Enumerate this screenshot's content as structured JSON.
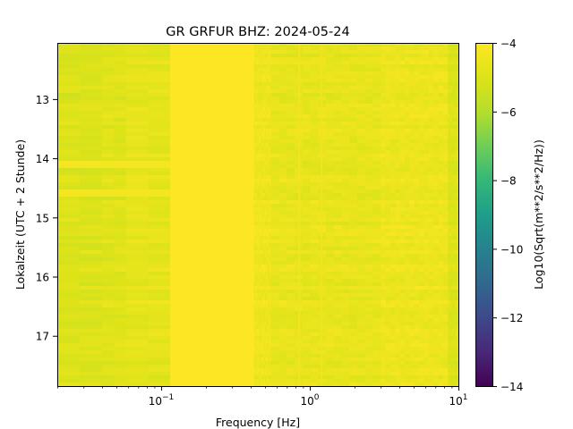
{
  "chart_data": {
    "type": "heatmap",
    "title": "GR GRFUR  BHZ: 2024-05-24",
    "xlabel": "Frequency [Hz]",
    "ylabel": "Lokalzeit (UTC + 2 Stunde)",
    "x_scale": "log",
    "xlim": [
      0.02,
      10
    ],
    "ylim": [
      17.85,
      12.05
    ],
    "x_ticks": [
      {
        "value": 0.1,
        "base": "10",
        "exp": "−1"
      },
      {
        "value": 1,
        "base": "10",
        "exp": "0"
      },
      {
        "value": 10,
        "base": "10",
        "exp": "1"
      }
    ],
    "y_ticks": [
      {
        "value": 13,
        "label": "13"
      },
      {
        "value": 14,
        "label": "14"
      },
      {
        "value": 15,
        "label": "15"
      },
      {
        "value": 16,
        "label": "16"
      },
      {
        "value": 17,
        "label": "17"
      }
    ],
    "colorbar": {
      "label": "Log10(Sqrt(m**2/s**2/Hz))",
      "colormap": "viridis",
      "range": [
        -14,
        -4
      ],
      "ticks": [
        {
          "value": -4,
          "label": "−4"
        },
        {
          "value": -6,
          "label": "−6"
        },
        {
          "value": -8,
          "label": "−8"
        },
        {
          "value": -10,
          "label": "−10"
        },
        {
          "value": -12,
          "label": "−12"
        },
        {
          "value": -14,
          "label": "−14"
        }
      ]
    },
    "frequency_bands": [
      {
        "f_min": 0.02,
        "f_max": 0.04,
        "level": -5.0
      },
      {
        "f_min": 0.04,
        "f_max": 0.058,
        "level": -4.9
      },
      {
        "f_min": 0.058,
        "f_max": 0.115,
        "level": -4.75
      },
      {
        "f_min": 0.115,
        "f_max": 0.42,
        "level": -4.0
      },
      {
        "f_min": 0.42,
        "f_max": 0.55,
        "level": -4.45
      },
      {
        "f_min": 0.55,
        "f_max": 3.0,
        "level": -4.65
      },
      {
        "f_min": 3.0,
        "f_max": 8.5,
        "level": -4.5
      },
      {
        "f_min": 8.5,
        "f_max": 10,
        "level": -5.0
      }
    ],
    "features": [
      {
        "kind": "band",
        "t_start": 14.05,
        "t_end": 14.15,
        "f_min": 0.02,
        "f_max": 0.115,
        "level": -4.25
      },
      {
        "kind": "band",
        "t_start": 14.52,
        "t_end": 14.62,
        "f_min": 0.02,
        "f_max": 0.115,
        "level": -4.3
      },
      {
        "kind": "line",
        "freq": 0.85,
        "t_start": 12.05,
        "t_end": 17.85,
        "level": -4.4
      },
      {
        "kind": "line",
        "freq": 1.2,
        "t_start": 12.05,
        "t_end": 17.85,
        "level": -4.45
      }
    ],
    "colors": {
      "background": "#ffffff",
      "axes": "#000000"
    }
  }
}
